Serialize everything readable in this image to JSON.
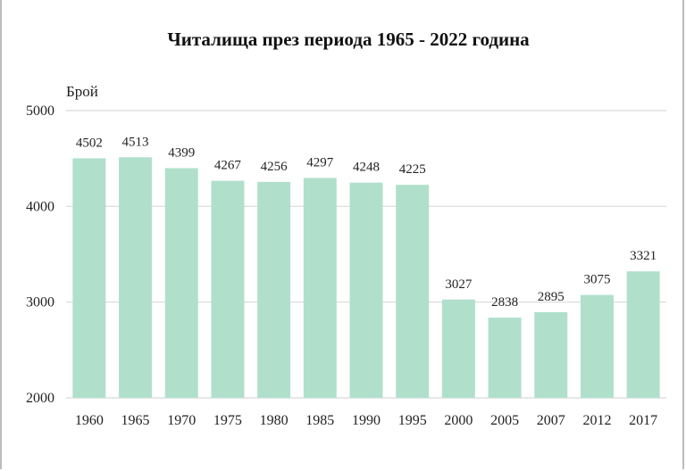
{
  "chart_data": {
    "type": "bar",
    "title": "Читалища през периода 1965 - 2022 година",
    "ylabel": "Брой",
    "xlabel": "",
    "categories": [
      "1960",
      "1965",
      "1970",
      "1975",
      "1980",
      "1985",
      "1990",
      "1995",
      "2000",
      "2005",
      "2007",
      "2012",
      "2017"
    ],
    "values": [
      4502,
      4513,
      4399,
      4267,
      4256,
      4297,
      4248,
      4225,
      3027,
      2838,
      2895,
      3075,
      3321
    ],
    "ylim": [
      2000,
      5000
    ],
    "yticks": [
      "2000",
      "3000",
      "4000",
      "5000"
    ],
    "grid": true,
    "legend": "none",
    "colors": {
      "bar": "#b0e0cc",
      "grid": "#d9d9d9",
      "text": "#222222"
    }
  }
}
